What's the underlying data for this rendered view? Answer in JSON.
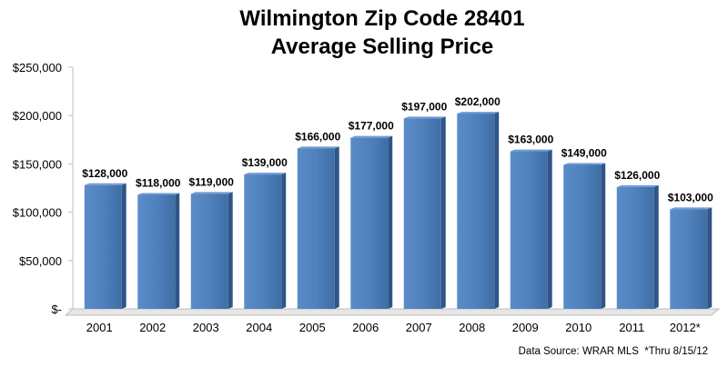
{
  "chart_data": {
    "type": "bar",
    "title": [
      "Wilmington Zip Code 28401",
      "Average Selling Price"
    ],
    "categories": [
      "2001",
      "2002",
      "2003",
      "2004",
      "2005",
      "2006",
      "2007",
      "2008",
      "2009",
      "2010",
      "2011",
      "2012*"
    ],
    "values": [
      128000,
      118000,
      119000,
      139000,
      166000,
      177000,
      197000,
      202000,
      163000,
      149000,
      126000,
      103000
    ],
    "data_labels": [
      "$128,000",
      "$118,000",
      "$119,000",
      "$139,000",
      "$166,000",
      "$177,000",
      "$197,000",
      "$202,000",
      "$163,000",
      "$149,000",
      "$126,000",
      "$103,000"
    ],
    "ylim": [
      0,
      250000
    ],
    "yticks": [
      0,
      50000,
      100000,
      150000,
      200000,
      250000
    ],
    "ytick_labels": [
      "$-",
      "$50,000",
      "$100,000",
      "$150,000",
      "$200,000",
      "$250,000"
    ],
    "xlabel": "",
    "ylabel": "",
    "grid": false,
    "legend": "none",
    "bar_color": "#4F81BD",
    "source_note": "Data Source: WRAR MLS  *Thru 8/15/12"
  }
}
